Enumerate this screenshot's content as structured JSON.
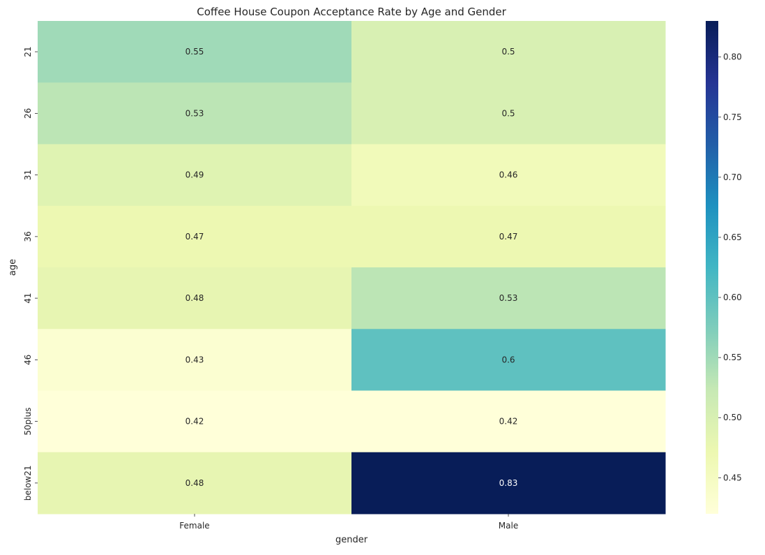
{
  "chart_data": {
    "type": "heatmap",
    "title": "Coffee House Coupon Acceptance Rate by Age and Gender",
    "xlabel": "gender",
    "ylabel": "age",
    "x_categories": [
      "Female",
      "Male"
    ],
    "y_categories": [
      "21",
      "26",
      "31",
      "36",
      "41",
      "46",
      "50plus",
      "below21"
    ],
    "values": [
      [
        0.55,
        0.5
      ],
      [
        0.53,
        0.5
      ],
      [
        0.49,
        0.46
      ],
      [
        0.47,
        0.47
      ],
      [
        0.48,
        0.53
      ],
      [
        0.43,
        0.6
      ],
      [
        0.42,
        0.42
      ],
      [
        0.48,
        0.83
      ]
    ],
    "annotations": [
      [
        "0.55",
        "0.5"
      ],
      [
        "0.53",
        "0.5"
      ],
      [
        "0.49",
        "0.46"
      ],
      [
        "0.47",
        "0.47"
      ],
      [
        "0.48",
        "0.53"
      ],
      [
        "0.43",
        "0.6"
      ],
      [
        "0.42",
        "0.42"
      ],
      [
        "0.48",
        "0.83"
      ]
    ],
    "colormap": "YlGnBu",
    "vmin": 0.42,
    "vmax": 0.83,
    "colorbar_ticks": [
      0.45,
      0.5,
      0.55,
      0.6,
      0.65,
      0.7,
      0.75,
      0.8
    ],
    "colorbar_tick_labels": [
      "0.45",
      "0.50",
      "0.55",
      "0.60",
      "0.65",
      "0.70",
      "0.75",
      "0.80"
    ],
    "colormap_stops": [
      "#ffffd9",
      "#edf8b1",
      "#c7e9b4",
      "#7fcdbb",
      "#41b6c4",
      "#1d91c0",
      "#225ea8",
      "#253494",
      "#081d58"
    ]
  }
}
